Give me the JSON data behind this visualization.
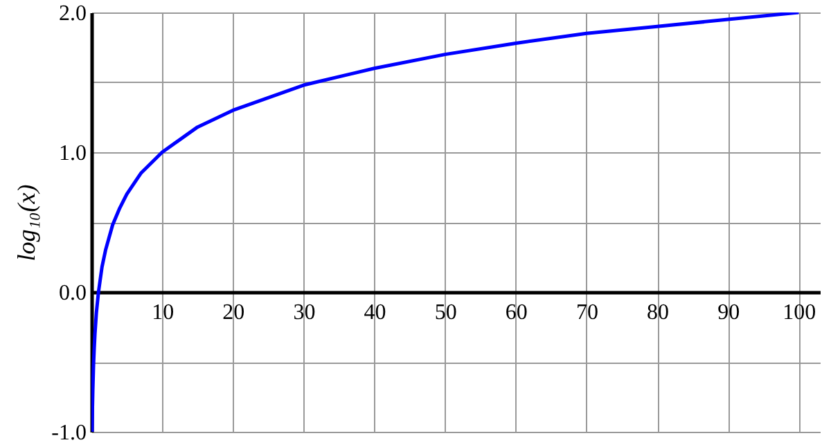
{
  "chart_data": {
    "type": "line",
    "ylabel": "log₁₀(x)",
    "x": [
      0.1,
      0.15,
      0.2,
      0.3,
      0.4,
      0.5,
      0.7,
      1,
      1.5,
      2,
      3,
      4,
      5,
      7,
      10,
      15,
      20,
      30,
      40,
      50,
      60,
      70,
      80,
      90,
      100
    ],
    "series": [
      {
        "color": "#0000ff",
        "values": [
          -1.0,
          -0.82,
          -0.7,
          -0.52,
          -0.4,
          -0.3,
          -0.15,
          0.0,
          0.18,
          0.3,
          0.48,
          0.6,
          0.7,
          0.85,
          1.0,
          1.18,
          1.3,
          1.48,
          1.6,
          1.7,
          1.78,
          1.85,
          1.9,
          1.95,
          2.0
        ]
      }
    ],
    "xlim": [
      0,
      103
    ],
    "xticks": [
      10,
      20,
      30,
      40,
      50,
      60,
      70,
      80,
      90,
      100
    ],
    "ylim": [
      -1,
      2
    ],
    "yticks": [
      {
        "value": -1,
        "label": "-1.0"
      },
      {
        "value": -0.5,
        "label": null
      },
      {
        "value": 0,
        "label": "0.0"
      },
      {
        "value": 0.5,
        "label": null
      },
      {
        "value": 1,
        "label": "1.0"
      },
      {
        "value": 1.5,
        "label": null
      },
      {
        "value": 2,
        "label": "2.0"
      }
    ],
    "grid": true,
    "marker": "none",
    "line_style": "solid"
  }
}
